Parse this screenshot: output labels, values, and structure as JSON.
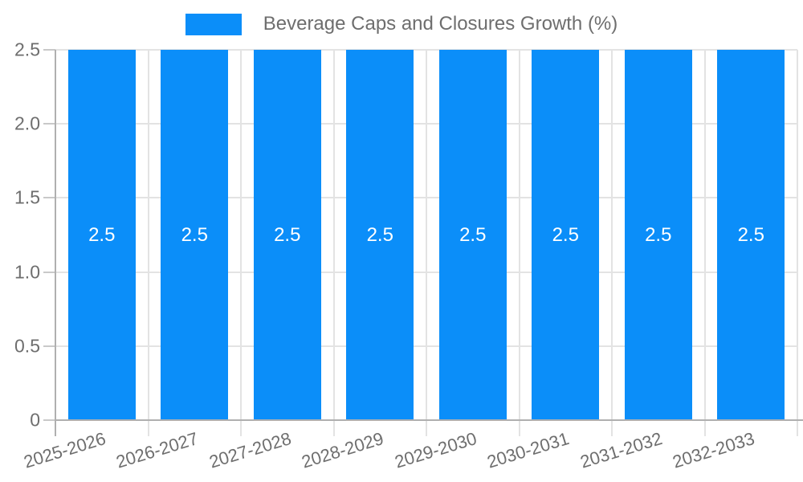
{
  "legend": {
    "label": "Beverage Caps and Closures Growth (%)"
  },
  "chart_data": {
    "type": "bar",
    "title": "Beverage Caps and Closures Growth (%)",
    "categories": [
      "2025-2026",
      "2026-2027",
      "2027-2028",
      "2028-2029",
      "2029-2030",
      "2030-2031",
      "2031-2032",
      "2032-2033"
    ],
    "values": [
      2.5,
      2.5,
      2.5,
      2.5,
      2.5,
      2.5,
      2.5,
      2.5
    ],
    "bar_value_labels": [
      "2.5",
      "2.5",
      "2.5",
      "2.5",
      "2.5",
      "2.5",
      "2.5",
      "2.5"
    ],
    "xlabel": "",
    "ylabel": "",
    "ylim": [
      0,
      2.5
    ],
    "ytick_values": [
      0,
      0.5,
      1.0,
      1.5,
      2.0,
      2.5
    ],
    "ytick_labels": [
      "0",
      "0.5",
      "1.0",
      "1.5",
      "2.0",
      "2.5"
    ],
    "grid": true,
    "legend_position": "top-center",
    "colors": {
      "bar": "#0b8ef9",
      "bar_label": "#ffffff",
      "axis_text": "#6e6e6e",
      "axis_line": "#b0b0b0",
      "gridline": "#e3e3e3",
      "tick": "#c9c9c9"
    }
  }
}
